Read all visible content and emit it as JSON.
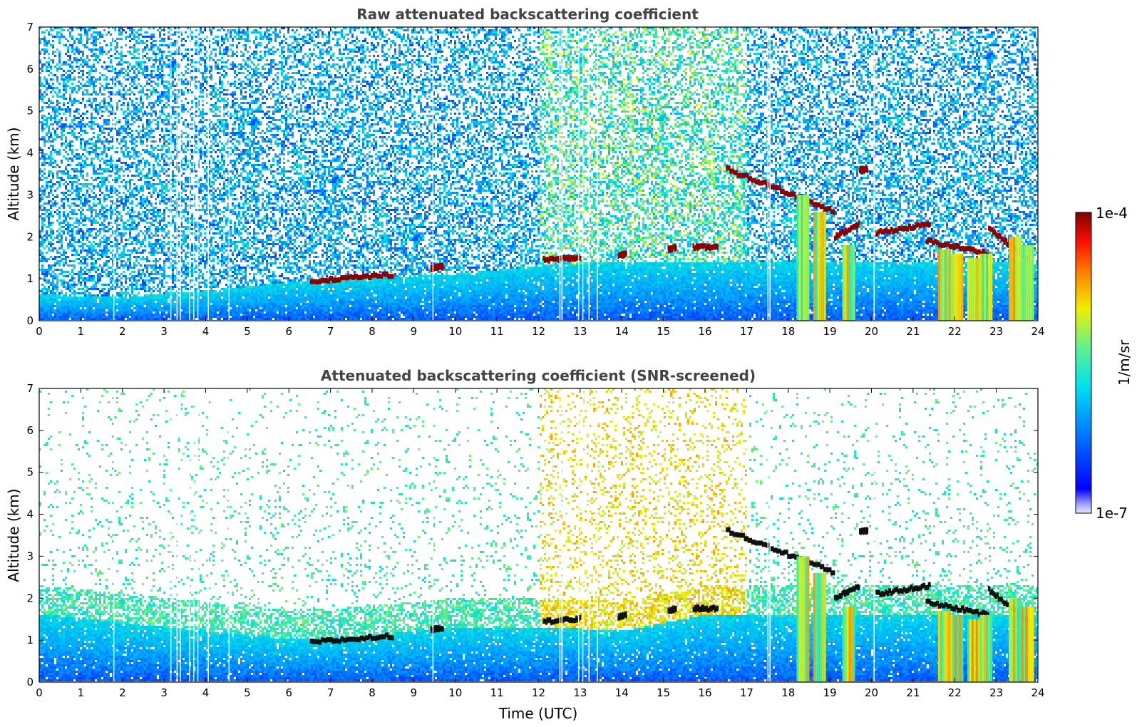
{
  "chart_data": [
    {
      "type": "heatmap",
      "title": "Raw attenuated backscattering coefficient",
      "xlabel": "",
      "ylabel": "Altitude (km)",
      "xlim": [
        0,
        24
      ],
      "ylim": [
        0,
        7
      ],
      "x_ticks": [
        "0",
        "1",
        "2",
        "3",
        "4",
        "5",
        "6",
        "7",
        "8",
        "9",
        "10",
        "11",
        "12",
        "13",
        "14",
        "15",
        "16",
        "17",
        "18",
        "19",
        "20",
        "21",
        "22",
        "23",
        "24"
      ],
      "y_ticks": [
        "0",
        "1",
        "2",
        "3",
        "4",
        "5",
        "6",
        "7"
      ],
      "screened": false,
      "boundary_layer_top_km": [
        [
          0,
          0.6
        ],
        [
          2,
          0.55
        ],
        [
          4,
          0.7
        ],
        [
          6,
          0.9
        ],
        [
          8,
          1.0
        ],
        [
          10,
          1.1
        ],
        [
          12,
          1.3
        ],
        [
          14,
          1.4
        ],
        [
          16,
          1.4
        ],
        [
          18,
          1.4
        ],
        [
          20,
          1.4
        ],
        [
          22,
          1.4
        ],
        [
          24,
          1.4
        ]
      ],
      "cloud_layers": [
        {
          "x": [
            6.5,
            8.5
          ],
          "y": [
            0.95,
            1.1
          ]
        },
        {
          "x": [
            9.4,
            9.7
          ],
          "y": [
            1.25,
            1.3
          ]
        },
        {
          "x": [
            12.1,
            13.0
          ],
          "y": [
            1.45,
            1.5
          ]
        },
        {
          "x": [
            13.9,
            14.1
          ],
          "y": [
            1.55,
            1.6
          ]
        },
        {
          "x": [
            15.1,
            15.3
          ],
          "y": [
            1.7,
            1.75
          ]
        },
        {
          "x": [
            15.7,
            16.3
          ],
          "y": [
            1.75,
            1.75
          ]
        },
        {
          "x": [
            16.5,
            19.1
          ],
          "y": [
            3.6,
            2.6
          ]
        },
        {
          "x": [
            19.1,
            19.7
          ],
          "y": [
            2.0,
            2.3
          ]
        },
        {
          "x": [
            19.7,
            19.9
          ],
          "y": [
            3.6,
            3.6
          ]
        },
        {
          "x": [
            20.1,
            21.4
          ],
          "y": [
            2.1,
            2.3
          ]
        },
        {
          "x": [
            21.3,
            22.8
          ],
          "y": [
            1.9,
            1.6
          ]
        },
        {
          "x": [
            22.8,
            23.8
          ],
          "y": [
            2.2,
            1.4
          ]
        }
      ]
    },
    {
      "type": "heatmap",
      "title": "Attenuated backscattering coefficient (SNR-screened)",
      "xlabel": "Time (UTC)",
      "ylabel": "Altitude (km)",
      "xlim": [
        0,
        24
      ],
      "ylim": [
        0,
        7
      ],
      "x_ticks": [
        "0",
        "1",
        "2",
        "3",
        "4",
        "5",
        "6",
        "7",
        "8",
        "9",
        "10",
        "11",
        "12",
        "13",
        "14",
        "15",
        "16",
        "17",
        "18",
        "19",
        "20",
        "21",
        "22",
        "23",
        "24"
      ],
      "y_ticks": [
        "0",
        "1",
        "2",
        "3",
        "4",
        "5",
        "6",
        "7"
      ],
      "screened": true,
      "boundary_layer_top_km": [
        [
          0,
          1.6
        ],
        [
          2,
          1.4
        ],
        [
          4,
          1.2
        ],
        [
          6,
          1.0
        ],
        [
          8,
          1.1
        ],
        [
          10,
          1.3
        ],
        [
          12,
          1.3
        ],
        [
          14,
          1.2
        ],
        [
          16,
          1.6
        ],
        [
          18,
          1.6
        ],
        [
          20,
          1.6
        ],
        [
          22,
          1.6
        ],
        [
          24,
          1.6
        ]
      ]
    }
  ],
  "colorbar": {
    "label": "1/m/sr",
    "max_label": "1e-4",
    "min_label": "1e-7",
    "scale": "log",
    "colormap": "jet",
    "under_color": "#e6e6ff"
  },
  "colors": {
    "background": "#ffffff",
    "title": "#444444",
    "cloud": "#8b0000",
    "boundary_layer": "#1060e8",
    "noise_light": "#5fc8e6",
    "noise_dark": "#1a1aa8"
  }
}
